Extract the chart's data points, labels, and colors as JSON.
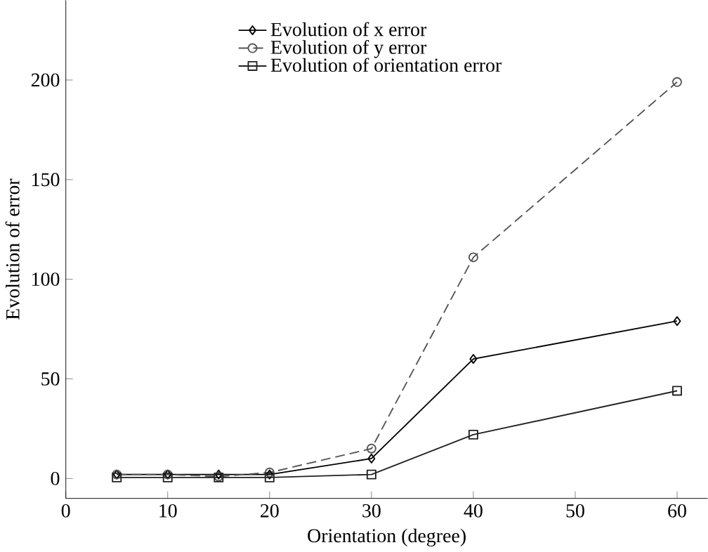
{
  "chart_data": {
    "type": "line",
    "xlabel": "Orientation (degree)",
    "ylabel": "Evolution of error",
    "x": [
      5,
      10,
      15,
      20,
      30,
      40,
      60
    ],
    "xlim": [
      0,
      63
    ],
    "ylim": [
      -10,
      240
    ],
    "xticks": [
      0,
      10,
      20,
      30,
      40,
      50,
      60
    ],
    "yticks": [
      0,
      50,
      100,
      150,
      200
    ],
    "legend": "top",
    "grid": false,
    "series": [
      {
        "name": "Evolution of x error",
        "color": "#000000",
        "marker": "diamond",
        "line_style": "solid",
        "values": [
          2,
          2,
          2,
          2,
          10,
          60,
          79
        ]
      },
      {
        "name": "Evolution of y error",
        "color": "#555555",
        "marker": "circle",
        "line_style": "dashed",
        "values": [
          2,
          2,
          1,
          3,
          15,
          111,
          199
        ]
      },
      {
        "name": "Evolution of orientation error",
        "color": "#222222",
        "marker": "square",
        "line_style": "solid",
        "values": [
          0.5,
          0.5,
          0.5,
          0.5,
          2,
          22,
          44
        ]
      }
    ]
  }
}
